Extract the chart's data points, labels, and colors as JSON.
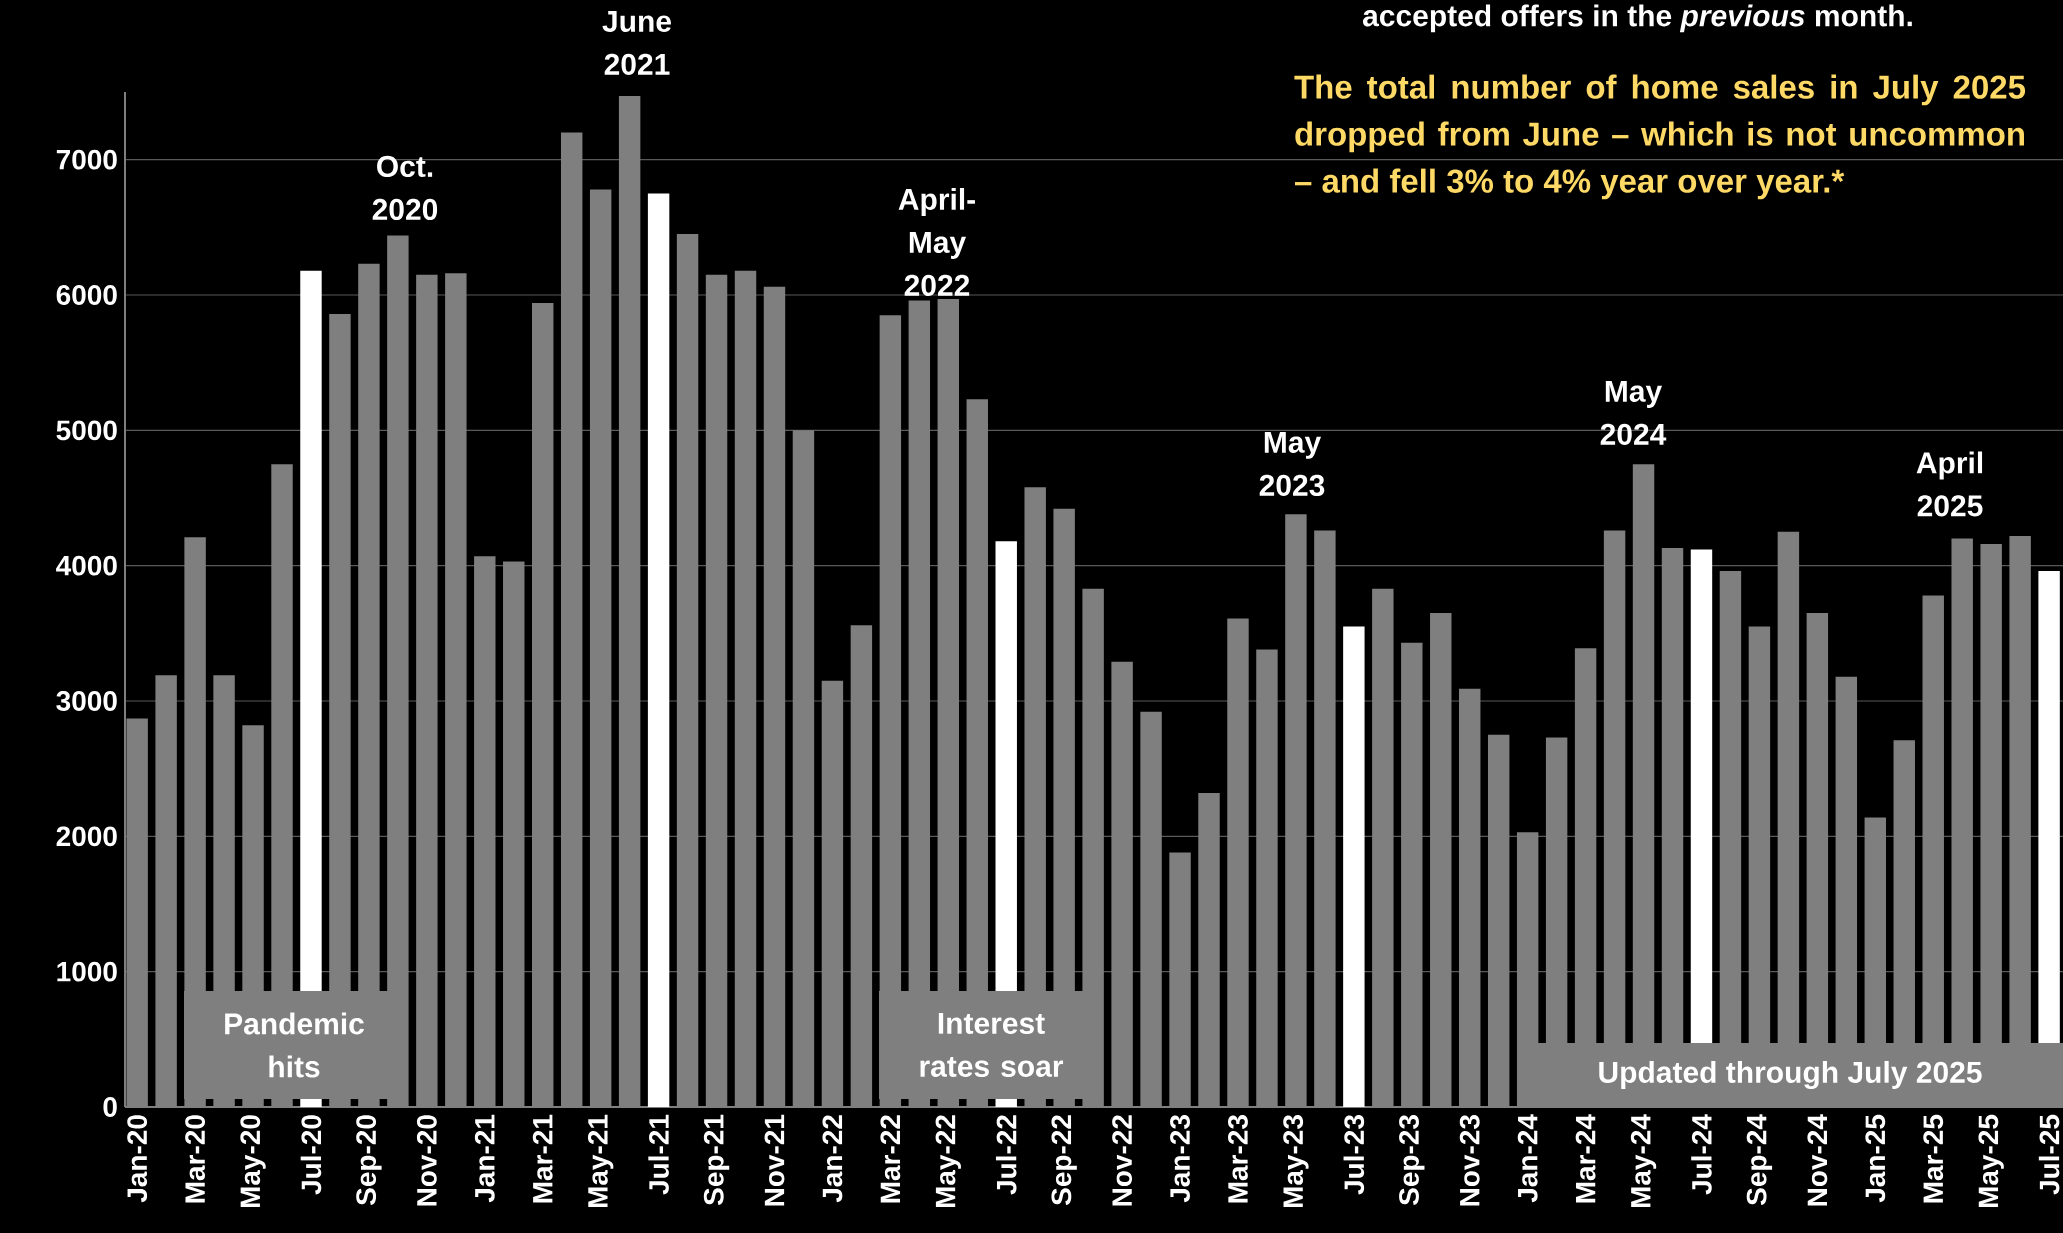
{
  "chart_data": {
    "type": "bar",
    "categories": [
      "Jan-20",
      null,
      "Mar-20",
      null,
      "May-20",
      null,
      "Jul-20",
      null,
      "Sep-20",
      null,
      "Nov-20",
      null,
      "Jan-21",
      null,
      "Mar-21",
      null,
      "May-21",
      null,
      "Jul-21",
      null,
      "Sep-21",
      null,
      "Nov-21",
      null,
      "Jan-22",
      null,
      "Mar-22",
      null,
      "May-22",
      null,
      "Jul-22",
      null,
      "Sep-22",
      null,
      "Nov-22",
      null,
      "Jan-23",
      null,
      "Mar-23",
      null,
      "May-23",
      null,
      "Jul-23",
      null,
      "Sep-23",
      null,
      "Nov-23",
      null,
      "Jan-24",
      null,
      "Mar-24",
      null,
      "May-24",
      null,
      "Jul-24",
      null,
      "Sep-24",
      null,
      "Nov-24",
      null,
      "Jan-25",
      null,
      "Mar-25",
      null,
      "May-25",
      null,
      "Jul-25"
    ],
    "values": [
      2870,
      3190,
      4210,
      3190,
      2820,
      4750,
      6180,
      5860,
      6230,
      6440,
      6150,
      6160,
      4070,
      4030,
      5940,
      7200,
      6780,
      7470,
      6750,
      6450,
      6150,
      6180,
      6060,
      5000,
      3150,
      3560,
      5850,
      5960,
      5970,
      5230,
      4180,
      4580,
      4420,
      3830,
      3290,
      2920,
      1880,
      2320,
      3610,
      3380,
      4380,
      4260,
      3550,
      3830,
      3430,
      3650,
      3090,
      2750,
      2030,
      2730,
      3390,
      4260,
      4750,
      4130,
      4120,
      3960,
      3550,
      4250,
      3650,
      3180,
      2140,
      2710,
      3780,
      4200,
      4160,
      4220,
      3960
    ],
    "colors": [
      "#7f7f7f",
      "#7f7f7f",
      "#7f7f7f",
      "#7f7f7f",
      "#7f7f7f",
      "#7f7f7f",
      "#ffffff",
      "#7f7f7f",
      "#7f7f7f",
      "#7f7f7f",
      "#7f7f7f",
      "#7f7f7f",
      "#7f7f7f",
      "#7f7f7f",
      "#7f7f7f",
      "#7f7f7f",
      "#7f7f7f",
      "#7f7f7f",
      "#ffffff",
      "#7f7f7f",
      "#7f7f7f",
      "#7f7f7f",
      "#7f7f7f",
      "#7f7f7f",
      "#7f7f7f",
      "#7f7f7f",
      "#7f7f7f",
      "#7f7f7f",
      "#7f7f7f",
      "#7f7f7f",
      "#ffffff",
      "#7f7f7f",
      "#7f7f7f",
      "#7f7f7f",
      "#7f7f7f",
      "#7f7f7f",
      "#7f7f7f",
      "#7f7f7f",
      "#7f7f7f",
      "#7f7f7f",
      "#7f7f7f",
      "#7f7f7f",
      "#ffffff",
      "#7f7f7f",
      "#7f7f7f",
      "#7f7f7f",
      "#7f7f7f",
      "#7f7f7f",
      "#7f7f7f",
      "#7f7f7f",
      "#7f7f7f",
      "#7f7f7f",
      "#7f7f7f",
      "#7f7f7f",
      "#ffffff",
      "#7f7f7f",
      "#7f7f7f",
      "#7f7f7f",
      "#7f7f7f",
      "#7f7f7f",
      "#7f7f7f",
      "#7f7f7f",
      "#7f7f7f",
      "#7f7f7f",
      "#7f7f7f",
      "#7f7f7f",
      "#ffffff"
    ],
    "ylim": [
      0,
      7500
    ],
    "yticks": [
      0,
      1000,
      2000,
      3000,
      4000,
      5000,
      6000,
      7000
    ],
    "grid": "y",
    "annotations": [
      "accepted offers in the *previous* month.",
      "The total number of home sales in July 2025 dropped from June – which is not uncommon – and fell 3% to 4% year over year.*",
      "Oct. 2020",
      "June 2021",
      "April-May 2022",
      "May 2023",
      "May 2024",
      "April 2025",
      "Pandemic hits",
      "Interest rates soar",
      "Updated through July 2025"
    ]
  }
}
